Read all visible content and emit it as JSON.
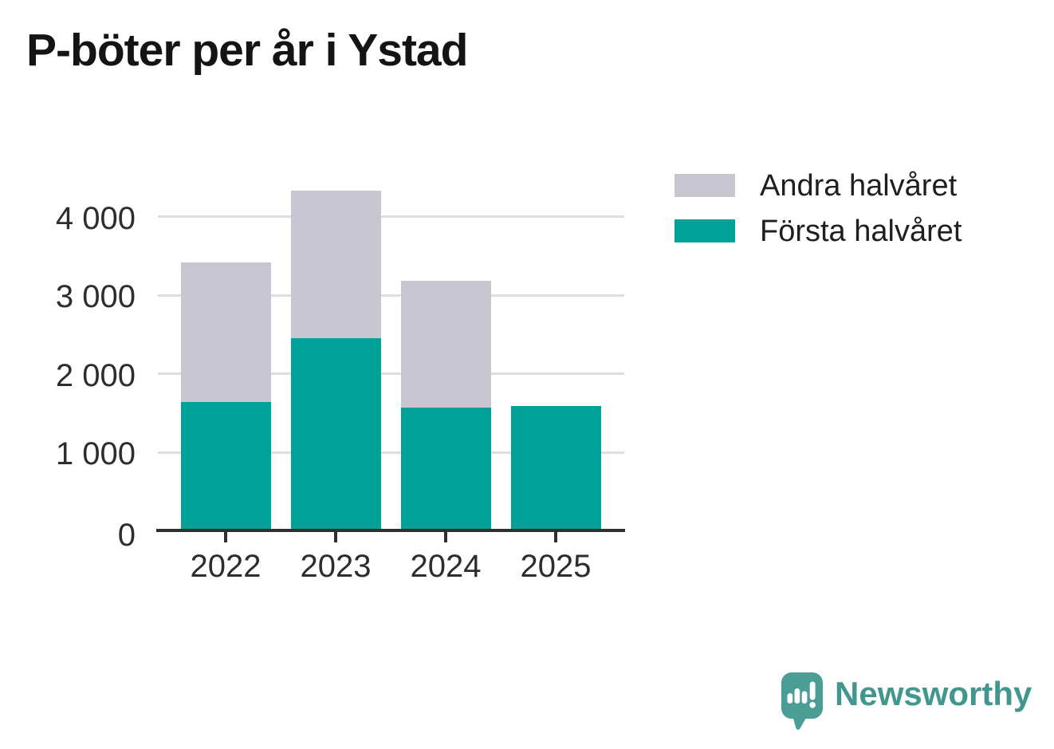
{
  "title": "P-böter per år i Ystad",
  "chart_data": {
    "type": "bar",
    "stacked": true,
    "title": "P-böter per år i Ystad",
    "categories": [
      "2022",
      "2023",
      "2024",
      "2025"
    ],
    "series": [
      {
        "name": "Första halvåret",
        "color": "#00a298",
        "values": [
          1640,
          2450,
          1570,
          1590
        ]
      },
      {
        "name": "Andra halvåret",
        "color": "#c8c6d0",
        "values": [
          1770,
          1880,
          1610,
          0
        ]
      }
    ],
    "xlabel": "",
    "ylabel": "",
    "ylim": [
      0,
      4400
    ],
    "y_ticks": [
      {
        "value": 0,
        "label": "0"
      },
      {
        "value": 1000,
        "label": "1 000"
      },
      {
        "value": 2000,
        "label": "2 000"
      },
      {
        "value": 3000,
        "label": "3 000"
      },
      {
        "value": 4000,
        "label": "4 000"
      }
    ],
    "grid": true,
    "legend_position": "top-right"
  },
  "legend": {
    "items": [
      {
        "label": "Andra halvåret",
        "color": "#c8c6d0"
      },
      {
        "label": "Första halvåret",
        "color": "#00a298"
      }
    ]
  },
  "branding": {
    "logo_text": "Newsworthy",
    "logo_text_color": "#41968e",
    "logo_mark_color": "#4a9e96"
  },
  "colors": {
    "axis_line": "#2f2f2f",
    "grid_line": "#dedee1",
    "axis_text": "#2d2d2d",
    "title_text": "#141414",
    "background": "#ffffff"
  }
}
